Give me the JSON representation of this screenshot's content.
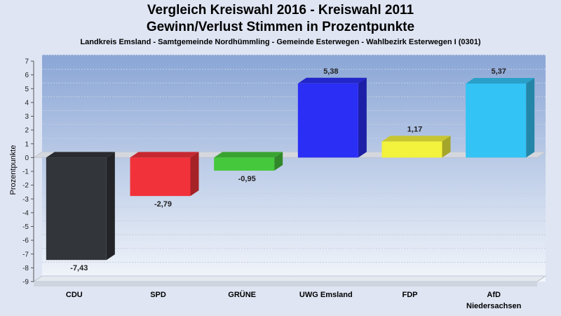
{
  "chart_data": {
    "type": "bar",
    "title": "Vergleich Kreiswahl 2016 - Kreiswahl 2011",
    "title2": "Gewinn/Verlust Stimmen in Prozentpunkte",
    "subtitle": "Landkreis Emsland - Samtgemeinde Nordhümmling - Gemeinde Esterwegen - Wahlbezirk Esterwegen I (0301)",
    "ylabel": "Prozentpunkte",
    "xlabel": "",
    "ylim": [
      -9,
      7
    ],
    "yticks": [
      "7",
      "6",
      "5",
      "4",
      "3",
      "2",
      "1",
      "0",
      "-1",
      "-2",
      "-3",
      "-4",
      "-5",
      "-6",
      "-7",
      "-8",
      "-9"
    ],
    "categories": [
      "CDU",
      "SPD",
      "GRÜNE",
      "UWG Emsland",
      "FDP",
      "AfD Niedersachsen"
    ],
    "category_lines": [
      [
        "CDU"
      ],
      [
        "SPD"
      ],
      [
        "GRÜNE"
      ],
      [
        "UWG Emsland"
      ],
      [
        "FDP"
      ],
      [
        "AfD",
        "Niedersachsen"
      ]
    ],
    "values": [
      -7.43,
      -2.79,
      -0.95,
      5.38,
      1.17,
      5.37
    ],
    "value_labels": [
      "-7,43",
      "-2,79",
      "-0,95",
      "5,38",
      "1,17",
      "5,37"
    ],
    "colors": [
      "#32353a",
      "#f2323a",
      "#46c83c",
      "#2b2ef5",
      "#f3f23c",
      "#33c3f5"
    ],
    "grid": true,
    "legend": "none"
  }
}
